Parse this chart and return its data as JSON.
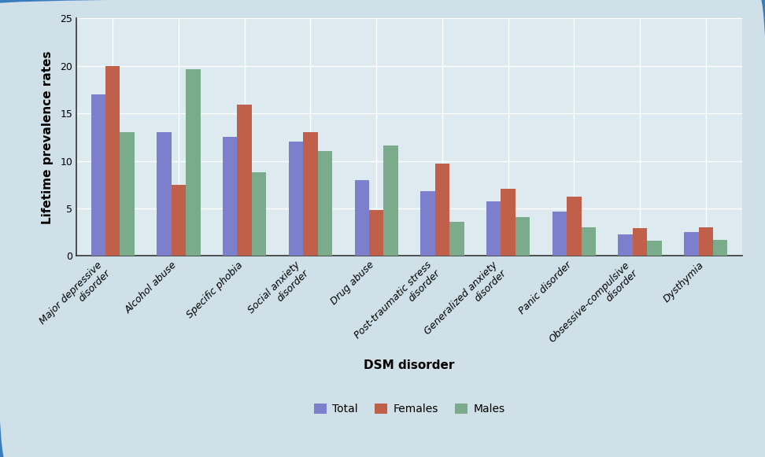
{
  "categories": [
    "Major depressive\ndisorder",
    "Alcohol abuse",
    "Specific phobia",
    "Social anxiety\ndisorder",
    "Drug abuse",
    "Post-traumatic stress\ndisorder",
    "Generalized anxiety\ndisorder",
    "Panic disorder",
    "Obsessive-compulsive\ndisorder",
    "Dysthymia"
  ],
  "total": [
    17.0,
    13.0,
    12.5,
    12.0,
    8.0,
    6.8,
    5.7,
    4.7,
    2.3,
    2.5
  ],
  "females": [
    20.0,
    7.5,
    15.9,
    13.0,
    4.8,
    9.7,
    7.1,
    6.2,
    2.9,
    3.0
  ],
  "males": [
    13.0,
    19.6,
    8.8,
    11.0,
    11.6,
    3.6,
    4.1,
    3.0,
    1.6,
    1.7
  ],
  "total_color": "#7b7fcc",
  "females_color": "#c0604a",
  "males_color": "#7aab8a",
  "xlabel": "DSM disorder",
  "ylabel": "Lifetime prevalence rates",
  "ylim": [
    0,
    25
  ],
  "yticks": [
    0,
    5,
    10,
    15,
    20,
    25
  ],
  "legend_labels": [
    "Total",
    "Females",
    "Males"
  ],
  "background_color": "#cfe0e8",
  "plot_bg_color": "#ddeaf0",
  "grid_color": "#ffffff",
  "border_color": "#3a7dbf",
  "axis_fontsize": 11,
  "tick_fontsize": 9,
  "legend_fontsize": 10
}
